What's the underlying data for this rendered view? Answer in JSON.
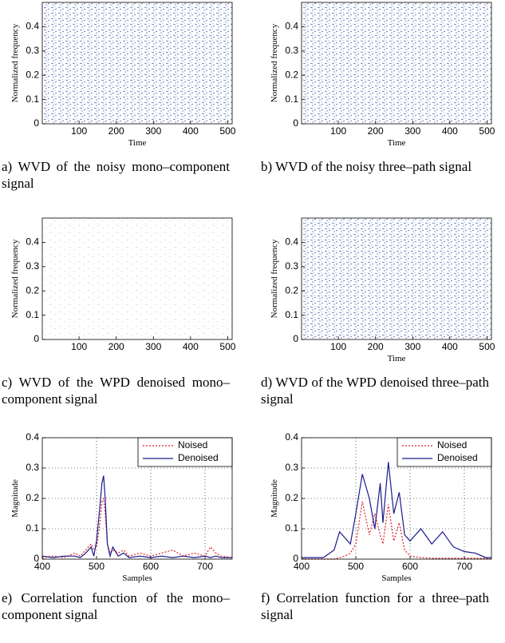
{
  "chart_data": [
    {
      "type": "contour",
      "caption": "a) WVD of the noisy mono–component signal",
      "xlabel": "Time",
      "ylabel": "Normalized frequency",
      "xlim": [
        1,
        512
      ],
      "ylim": [
        0,
        0.5
      ],
      "xticks": [
        100,
        200,
        300,
        400,
        500
      ],
      "yticks": [
        0,
        0.1,
        0.2,
        0.3,
        0.4
      ],
      "grid": false
    },
    {
      "type": "contour",
      "caption": "b) WVD of the noisy three–path signal",
      "xlabel": "Time",
      "ylabel": "Normalized frequency",
      "xlim": [
        1,
        512
      ],
      "ylim": [
        0,
        0.5
      ],
      "xticks": [
        100,
        200,
        300,
        400,
        500
      ],
      "yticks": [
        0,
        0.1,
        0.2,
        0.3,
        0.4
      ],
      "grid": false
    },
    {
      "type": "contour",
      "caption": "c) WVD of the WPD denoised mono–component signal",
      "ylabel": "Normalized frequency",
      "xlim": [
        1,
        512
      ],
      "ylim": [
        0,
        0.5
      ],
      "xticks": [
        100,
        200,
        300,
        400,
        500
      ],
      "yticks": [
        0,
        0.1,
        0.2,
        0.3,
        0.4
      ],
      "grid": false
    },
    {
      "type": "contour",
      "caption": "d) WVD of the WPD denoised three–path signal",
      "xlabel": "Time",
      "ylabel": "Normalized frequency",
      "xlim": [
        1,
        512
      ],
      "ylim": [
        0,
        0.5
      ],
      "xticks": [
        100,
        200,
        300,
        400,
        500
      ],
      "yticks": [
        0,
        0.1,
        0.2,
        0.3,
        0.4
      ],
      "grid": false
    },
    {
      "type": "line",
      "caption": "e) Correlation function of the mono–component signal",
      "xlabel": "Samples",
      "ylabel": "Magnitude",
      "xlim": [
        400,
        750
      ],
      "ylim": [
        0,
        0.4
      ],
      "xticks": [
        400,
        500,
        600,
        700
      ],
      "yticks": [
        0,
        0.1,
        0.2,
        0.3,
        0.4
      ],
      "grid": true,
      "legend": "upper right",
      "x": [
        400,
        420,
        440,
        460,
        470,
        480,
        490,
        495,
        500,
        505,
        510,
        513,
        516,
        520,
        525,
        530,
        540,
        550,
        560,
        580,
        600,
        620,
        640,
        660,
        680,
        700,
        710,
        720,
        730,
        750
      ],
      "series": [
        {
          "name": "Noised",
          "color": "#e02020",
          "dash": true,
          "values": [
            0.005,
            0.01,
            0.005,
            0.02,
            0.01,
            0.03,
            0.05,
            0.03,
            0.04,
            0.1,
            0.19,
            0.2,
            0.15,
            0.05,
            0.02,
            0.03,
            0.02,
            0.03,
            0.01,
            0.02,
            0.01,
            0.02,
            0.03,
            0.01,
            0.02,
            0.01,
            0.04,
            0.02,
            0.01,
            0.005
          ]
        },
        {
          "name": "Denoised",
          "color": "#1a1a8c",
          "dash": false,
          "values": [
            0.01,
            0.005,
            0.01,
            0.01,
            0.005,
            0.02,
            0.04,
            0.01,
            0.06,
            0.15,
            0.25,
            0.275,
            0.2,
            0.05,
            0.01,
            0.04,
            0.01,
            0.02,
            0.005,
            0.01,
            0.005,
            0.01,
            0.005,
            0.01,
            0.005,
            0.01,
            0.005,
            0.01,
            0.005,
            0.005
          ]
        }
      ]
    },
    {
      "type": "line",
      "caption": "f) Correlation function for a three–path signal",
      "xlabel": "Samples",
      "ylabel": "Magnitude",
      "xlim": [
        400,
        750
      ],
      "ylim": [
        0,
        0.4
      ],
      "xticks": [
        400,
        500,
        600,
        700
      ],
      "yticks": [
        0,
        0.1,
        0.2,
        0.3,
        0.4
      ],
      "grid": true,
      "legend": "upper right",
      "x": [
        400,
        440,
        460,
        470,
        480,
        490,
        500,
        512,
        525,
        535,
        545,
        550,
        560,
        570,
        580,
        590,
        600,
        620,
        640,
        660,
        680,
        700,
        720,
        740,
        750
      ],
      "series": [
        {
          "name": "Noised",
          "color": "#e02020",
          "dash": true,
          "values": [
            0,
            0,
            0,
            0.005,
            0.01,
            0.02,
            0.05,
            0.19,
            0.08,
            0.15,
            0.08,
            0.05,
            0.18,
            0.06,
            0.12,
            0.03,
            0.01,
            0.005,
            0.003,
            0.003,
            0.003,
            0.003,
            0.003,
            0.003,
            0
          ]
        },
        {
          "name": "Denoised",
          "color": "#1a1a8c",
          "dash": false,
          "values": [
            0.005,
            0.005,
            0.03,
            0.09,
            0.07,
            0.05,
            0.15,
            0.28,
            0.2,
            0.1,
            0.25,
            0.12,
            0.32,
            0.15,
            0.22,
            0.08,
            0.06,
            0.1,
            0.05,
            0.09,
            0.04,
            0.025,
            0.02,
            0.005,
            0.005
          ]
        }
      ]
    }
  ]
}
